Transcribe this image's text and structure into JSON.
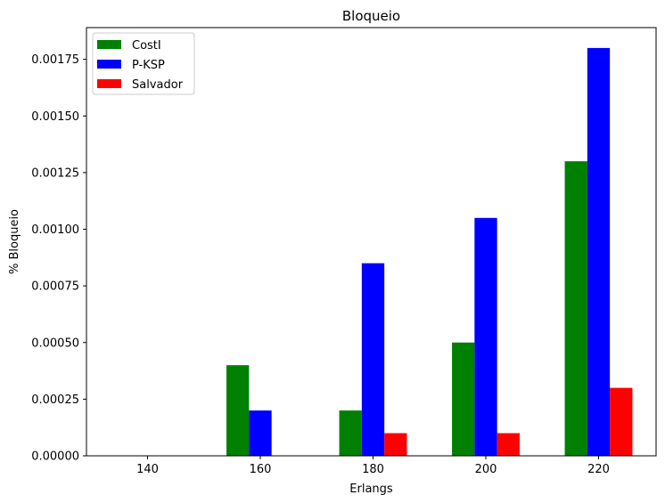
{
  "chart_data": {
    "type": "bar",
    "title": "Bloqueio",
    "xlabel": "Erlangs",
    "ylabel": "% Bloqueio",
    "categories": [
      "140",
      "160",
      "180",
      "200",
      "220"
    ],
    "series": [
      {
        "name": "CostI",
        "color": "#008000",
        "values": [
          0,
          0.0004,
          0.0002,
          0.0005,
          0.0013
        ]
      },
      {
        "name": "P-KSP",
        "color": "#0000ff",
        "values": [
          0,
          0.0002,
          0.00085,
          0.00105,
          0.0018
        ]
      },
      {
        "name": "Salvador",
        "color": "#ff0000",
        "values": [
          0,
          0,
          0.0001,
          0.0001,
          0.0003
        ]
      }
    ],
    "ylim": [
      0,
      0.00189
    ],
    "yticks": [
      "0.00000",
      "0.00025",
      "0.00050",
      "0.00075",
      "0.00100",
      "0.00125",
      "0.00150",
      "0.00175"
    ],
    "ytick_values": [
      0,
      0.00025,
      0.0005,
      0.00075,
      0.001,
      0.00125,
      0.0015,
      0.00175
    ],
    "legend_position": "top-left",
    "grid": false
  }
}
